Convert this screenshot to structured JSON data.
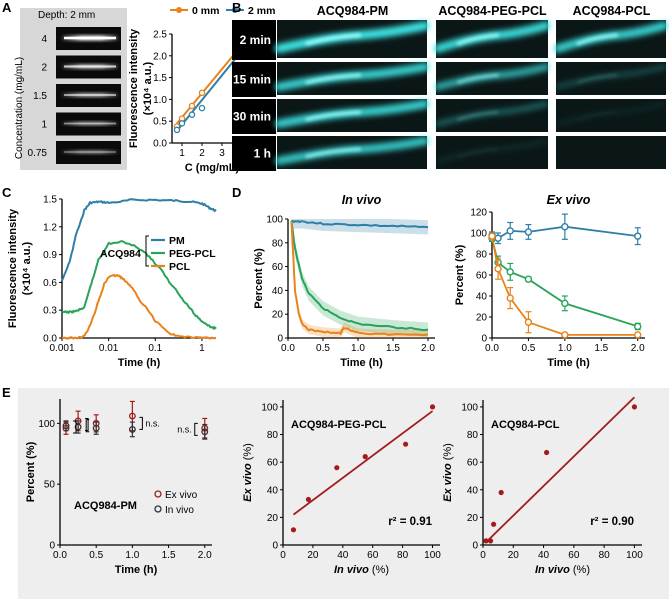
{
  "colors": {
    "orange": "#e8821a",
    "teal": "#2e7fa7",
    "green": "#27a35a",
    "darkred": "#a31c1c",
    "cyan": "#3ee6e6",
    "panel_e_bg": "#eeeeee"
  },
  "panel_a": {
    "letter": "A",
    "depth_label": "Depth: 2 mm",
    "ylabel": "Concentration (mg/mL)",
    "concentrations": [
      "4",
      "2",
      "1.5",
      "1",
      "0.75"
    ],
    "intensities": [
      1.0,
      0.72,
      0.58,
      0.46,
      0.36
    ]
  },
  "panel_b": {
    "letter": "B",
    "columns": [
      "ACQ984-PM",
      "ACQ984-PEG-PCL",
      "ACQ984-PCL"
    ],
    "rows": [
      "2 min",
      "15 min",
      "30 min",
      "1 h"
    ],
    "signal": [
      [
        1.0,
        0.95,
        0.9
      ],
      [
        0.9,
        0.7,
        0.25
      ],
      [
        0.9,
        0.35,
        0.08
      ],
      [
        0.85,
        0.1,
        0.04
      ]
    ]
  },
  "panel_c": {
    "letter": "C",
    "legend_title": "ACQ984",
    "legend": [
      "PM",
      "PEG-PCL",
      "PCL"
    ]
  },
  "panel_d": {
    "letter": "D",
    "invivo_title": "In vivo",
    "exvivo_title": "Ex vivo"
  },
  "panel_e": {
    "letter": "E",
    "legend": [
      "Ex vivo",
      "In vivo"
    ],
    "label_pm": "ACQ984-PM",
    "ns": [
      "n.s.",
      "n.s."
    ],
    "label_pegpcl": "ACQ984-PEG-PCL",
    "label_pcl": "ACQ984-PCL",
    "r2_pegpcl": "r² = 0.91",
    "r2_pcl": "r² = 0.90"
  },
  "chart_data": [
    {
      "id": "A-right",
      "type": "scatter",
      "xlabel": "C (mg/mL)",
      "ylabel": "Fluorescence intensity (×10⁴ a.u.)",
      "xlim": [
        0.5,
        4.5
      ],
      "ylim": [
        0,
        2.5
      ],
      "xticks": [
        "1",
        "2",
        "3",
        "4"
      ],
      "yticks": [
        "0.0",
        "0.5",
        "1.0",
        "1.5",
        "2.0",
        "2.5"
      ],
      "series": [
        {
          "name": "0 mm",
          "color": "#e8821a",
          "x": [
            0.75,
            1,
            1.5,
            2,
            4
          ],
          "y": [
            0.38,
            0.56,
            0.85,
            1.15,
            2.25
          ],
          "fit": [
            [
              0.75,
              0.45
            ],
            [
              4,
              2.25
            ]
          ]
        },
        {
          "name": "2 mm",
          "color": "#2e7fa7",
          "x": [
            0.75,
            1,
            1.5,
            2,
            4
          ],
          "y": [
            0.3,
            0.45,
            0.65,
            0.8,
            2.1
          ],
          "fit": [
            [
              0.75,
              0.28
            ],
            [
              4,
              2.12
            ]
          ]
        }
      ]
    },
    {
      "id": "C",
      "type": "line",
      "xlabel": "Time (h)",
      "ylabel": "Fluorescence intensity (×10⁴ a.u.)",
      "xscale": "log",
      "xlim": [
        0.001,
        2
      ],
      "ylim": [
        0,
        1.5
      ],
      "xticks": [
        "0.001",
        "0.01",
        "0.1",
        "1"
      ],
      "yticks": [
        "0.0",
        "0.3",
        "0.6",
        "0.9",
        "1.2",
        "1.5"
      ],
      "series": [
        {
          "name": "PM",
          "color": "#2e7fa7",
          "x": [
            0.001,
            0.0015,
            0.002,
            0.003,
            0.004,
            0.006,
            0.01,
            0.03,
            0.1,
            0.3,
            0.6,
            1,
            1.5,
            2
          ],
          "y": [
            0.62,
            0.85,
            1.12,
            1.38,
            1.46,
            1.47,
            1.46,
            1.49,
            1.49,
            1.48,
            1.47,
            1.45,
            1.4,
            1.37
          ]
        },
        {
          "name": "PEG-PCL",
          "color": "#27a35a",
          "x": [
            0.001,
            0.0015,
            0.002,
            0.003,
            0.004,
            0.006,
            0.01,
            0.02,
            0.05,
            0.1,
            0.2,
            0.4,
            0.7,
            1,
            1.5,
            2
          ],
          "y": [
            0.28,
            0.28,
            0.29,
            0.33,
            0.55,
            0.85,
            1.02,
            1.04,
            0.95,
            0.8,
            0.6,
            0.4,
            0.25,
            0.18,
            0.12,
            0.1
          ]
        },
        {
          "name": "PCL",
          "color": "#e8821a",
          "x": [
            0.001,
            0.002,
            0.003,
            0.004,
            0.006,
            0.008,
            0.01,
            0.015,
            0.02,
            0.03,
            0.05,
            0.1,
            0.2,
            0.3,
            0.5,
            1,
            2
          ],
          "y": [
            0.0,
            0.0,
            0.02,
            0.14,
            0.4,
            0.58,
            0.66,
            0.68,
            0.64,
            0.55,
            0.38,
            0.18,
            0.05,
            0.02,
            0.01,
            0.0,
            0.0
          ]
        }
      ]
    },
    {
      "id": "D-in-vivo",
      "type": "line",
      "title": "In vivo",
      "xlabel": "Time (h)",
      "ylabel": "Percent (%)",
      "xlim": [
        0,
        2.1
      ],
      "ylim": [
        0,
        100
      ],
      "xticks": [
        "0.0",
        "0.5",
        "1.0",
        "1.5",
        "2.0"
      ],
      "yticks": [
        "0",
        "20",
        "40",
        "60",
        "80",
        "100"
      ],
      "series": [
        {
          "color": "#2e7fa7",
          "x": [
            0.05,
            0.2,
            0.5,
            1.0,
            1.5,
            2.0
          ],
          "y": [
            98,
            98,
            96,
            95,
            94,
            93
          ],
          "band": 6
        },
        {
          "color": "#27a35a",
          "x": [
            0.05,
            0.1,
            0.2,
            0.3,
            0.5,
            0.75,
            1.0,
            1.5,
            2.0
          ],
          "y": [
            98,
            75,
            50,
            37,
            25,
            17,
            12,
            9,
            7
          ],
          "band": 6
        },
        {
          "color": "#e8821a",
          "x": [
            0.05,
            0.1,
            0.15,
            0.2,
            0.3,
            0.5,
            0.75,
            0.8,
            1.0,
            1.5,
            2.0
          ],
          "y": [
            98,
            40,
            22,
            12,
            7,
            5,
            4,
            9,
            4,
            3,
            3
          ],
          "band": 4
        }
      ]
    },
    {
      "id": "D-ex-vivo",
      "type": "line",
      "title": "Ex vivo",
      "xlabel": "Time (h)",
      "ylabel": "Percent (%)",
      "xlim": [
        0,
        2.1
      ],
      "ylim": [
        0,
        120
      ],
      "xticks": [
        "0.0",
        "0.5",
        "1.0",
        "1.5",
        "2.0"
      ],
      "yticks": [
        "0",
        "20",
        "40",
        "60",
        "80",
        "100",
        "120"
      ],
      "series": [
        {
          "color": "#2e7fa7",
          "x": [
            0.0,
            0.083,
            0.25,
            0.5,
            1.0,
            2.0
          ],
          "y": [
            98,
            95,
            102,
            101,
            106,
            97
          ],
          "err": [
            3,
            5,
            8,
            7,
            12,
            8
          ]
        },
        {
          "color": "#27a35a",
          "x": [
            0.0,
            0.083,
            0.25,
            0.5,
            1.0,
            2.0
          ],
          "y": [
            95,
            72,
            63,
            56,
            33,
            11
          ],
          "err": [
            3,
            6,
            8,
            2,
            7,
            3
          ]
        },
        {
          "color": "#e8821a",
          "x": [
            0.0,
            0.083,
            0.25,
            0.5,
            1.0,
            2.0
          ],
          "y": [
            97,
            66,
            38,
            15,
            3,
            3
          ],
          "err": [
            3,
            10,
            10,
            10,
            1,
            1
          ]
        }
      ]
    },
    {
      "id": "E-PM",
      "type": "scatter",
      "xlabel": "Time (h)",
      "ylabel": "Percent (%)",
      "xlim": [
        0,
        2.1
      ],
      "ylim": [
        0,
        120
      ],
      "xticks": [
        "0.0",
        "0.5",
        "1.0",
        "1.5",
        "2.0"
      ],
      "yticks": [
        "0",
        "50",
        "100"
      ],
      "series": [
        {
          "name": "Ex vivo",
          "color": "#a31c1c",
          "x": [
            0.083,
            0.25,
            0.5,
            1.0,
            2.0
          ],
          "y": [
            96,
            102,
            100,
            106,
            96
          ],
          "err": [
            5,
            8,
            7,
            12,
            8
          ]
        },
        {
          "name": "In vivo",
          "color": "#333333",
          "x": [
            0.083,
            0.25,
            0.5,
            1.0,
            2.0
          ],
          "y": [
            98,
            97,
            96,
            95,
            93
          ],
          "err": [
            4,
            5,
            5,
            6,
            6
          ]
        }
      ]
    },
    {
      "id": "E-PEG-PCL",
      "type": "scatter",
      "xlabel": "In vivo (%)",
      "ylabel": "Ex vivo (%)",
      "xlim": [
        0,
        105
      ],
      "ylim": [
        0,
        105
      ],
      "xticks": [
        "0",
        "20",
        "40",
        "60",
        "80",
        "100"
      ],
      "yticks": [
        "0",
        "20",
        "40",
        "60",
        "80",
        "100"
      ],
      "points": {
        "x": [
          7,
          17,
          36,
          55,
          82,
          100
        ],
        "y": [
          11,
          33,
          56,
          64,
          73,
          100
        ]
      },
      "fit": [
        [
          7,
          22
        ],
        [
          100,
          97
        ]
      ],
      "annotation": "r² = 0.91"
    },
    {
      "id": "E-PCL",
      "type": "scatter",
      "xlabel": "In vivo (%)",
      "ylabel": "Ex vivo (%)",
      "xlim": [
        0,
        105
      ],
      "ylim": [
        0,
        105
      ],
      "xticks": [
        "0",
        "20",
        "40",
        "60",
        "80",
        "100"
      ],
      "yticks": [
        "0",
        "20",
        "40",
        "60",
        "80",
        "100"
      ],
      "points": {
        "x": [
          2,
          5,
          7,
          12,
          42,
          100
        ],
        "y": [
          3,
          3,
          15,
          38,
          67,
          100
        ]
      },
      "fit": [
        [
          2,
          2
        ],
        [
          100,
          107
        ]
      ],
      "annotation": "r² = 0.90"
    }
  ]
}
